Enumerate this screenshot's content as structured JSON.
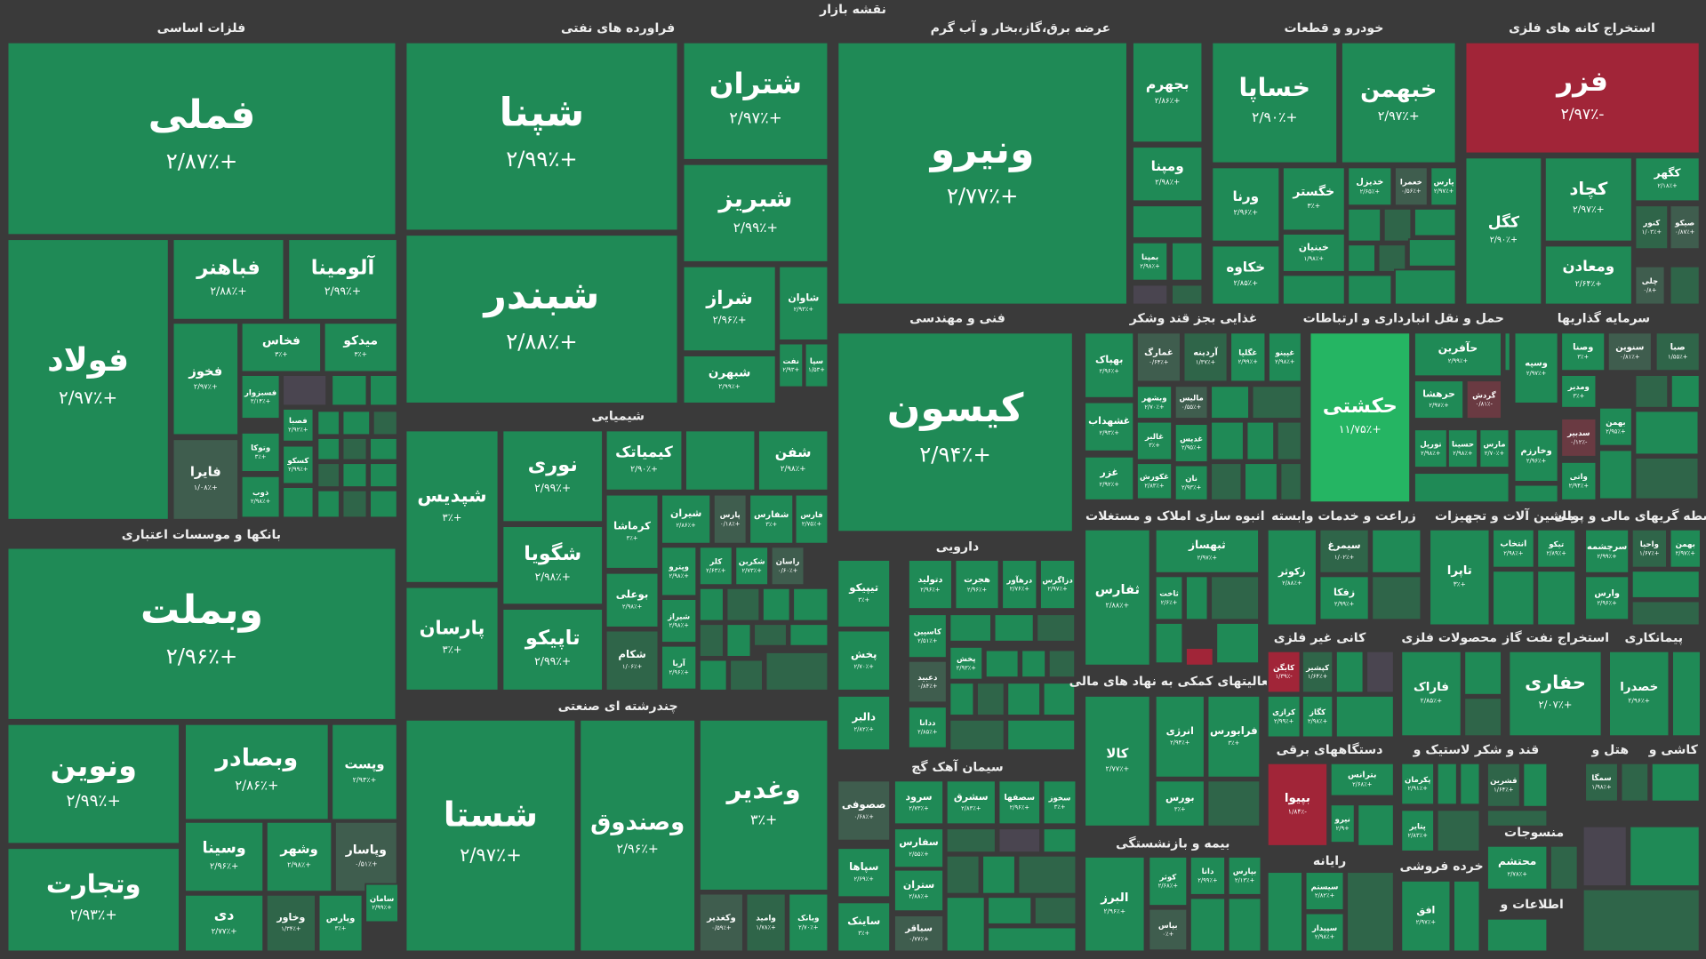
{
  "title": "نقشه بازار",
  "sectors": [
    {
      "title": "فلزات اساسی",
      "tiles": [
        {
          "name": "فملی",
          "change": "+۲/۸۷٪"
        },
        {
          "name": "فولاد",
          "change": "+۲/۹۷٪"
        },
        {
          "name": "فباهنر",
          "change": "+۲/۸۸٪"
        },
        {
          "name": "آلومینا",
          "change": "+۲/۹۹٪"
        },
        {
          "name": "فخوز",
          "change": "+۲/۹۷٪"
        },
        {
          "name": "فخاس",
          "change": "+۳٪"
        },
        {
          "name": "میدکو",
          "change": "+۳٪"
        },
        {
          "name": "فسبزوار",
          "change": "+۳/۱۴٪"
        },
        {
          "name": "فایرا",
          "change": "+۱/۰۸٪"
        },
        {
          "name": "وتوکا",
          "change": "+۳٪"
        },
        {
          "name": "ذوب",
          "change": "+۲/۹۸٪"
        },
        {
          "name": "فصبا",
          "change": "+۲/۹۲٪"
        },
        {
          "name": "کسکو",
          "change": "+۲/۹۹٪"
        }
      ]
    },
    {
      "title": "بانکها و موسسات اعتباری",
      "tiles": [
        {
          "name": "وبملت",
          "change": "+۲/۹۶٪"
        },
        {
          "name": "ونوین",
          "change": "+۲/۹۹٪"
        },
        {
          "name": "وبصادر",
          "change": "+۲/۸۶٪"
        },
        {
          "name": "وپست",
          "change": "+۲/۹۴٪"
        },
        {
          "name": "وتجارت",
          "change": "+۲/۹۳٪"
        },
        {
          "name": "وسینا",
          "change": "+۲/۹۶٪"
        },
        {
          "name": "وشهر",
          "change": "+۲/۹۸٪"
        },
        {
          "name": "وپاسار",
          "change": "+۰/۵۱٪"
        },
        {
          "name": "دی",
          "change": "+۲/۷۷٪"
        },
        {
          "name": "وخاور",
          "change": "+۱/۳۴٪"
        },
        {
          "name": "وپارس",
          "change": "+۳٪"
        },
        {
          "name": "سامان",
          "change": "+۲/۹۹٪"
        }
      ]
    },
    {
      "title": "فراورده های نفتی",
      "tiles": [
        {
          "name": "شپنا",
          "change": "+۲/۹۹٪"
        },
        {
          "name": "شتران",
          "change": "+۲/۹۷٪"
        },
        {
          "name": "شبریز",
          "change": "+۲/۹۹٪"
        },
        {
          "name": "شبندر",
          "change": "+۲/۸۸٪"
        },
        {
          "name": "شراز",
          "change": "+۲/۹۶٪"
        },
        {
          "name": "شاوان",
          "change": "+۲/۹۳٪"
        },
        {
          "name": "شبهرن",
          "change": "+۲/۹۹٪"
        },
        {
          "name": "نفت",
          "change": "+۲/۹۳"
        },
        {
          "name": "سپا",
          "change": "+۱/۵۳"
        }
      ]
    },
    {
      "title": "شیمیایی",
      "tiles": [
        {
          "name": "شپدیس",
          "change": "+۳٪"
        },
        {
          "name": "پارسان",
          "change": "+۳٪"
        },
        {
          "name": "نوری",
          "change": "+۲/۹۹٪"
        },
        {
          "name": "شگویا",
          "change": "+۲/۹۸٪"
        },
        {
          "name": "تاپیکو",
          "change": "+۲/۹۹٪"
        },
        {
          "name": "کیمیاتک",
          "change": "+۲/۹۰٪"
        },
        {
          "name": "شفن",
          "change": "+۲/۹۸٪"
        },
        {
          "name": "کرماشا",
          "change": "+۳٪"
        },
        {
          "name": "شیران",
          "change": "+۲/۸۶٪"
        },
        {
          "name": "پارس",
          "change": "+۰/۱۸٪"
        },
        {
          "name": "شفارس",
          "change": "+۳٪"
        },
        {
          "name": "فارس",
          "change": "+۲/۷۵٪"
        },
        {
          "name": "بوعلی",
          "change": "+۲/۹۸٪"
        },
        {
          "name": "شکام",
          "change": "+۱/۰۶٪"
        },
        {
          "name": "وپترو",
          "change": "+۲/۹۸٪"
        },
        {
          "name": "کلر",
          "change": "+۲/۶۳٪"
        },
        {
          "name": "شکربن",
          "change": "+۲/۷۳٪"
        },
        {
          "name": "راسان",
          "change": "+۰/۶۰٪"
        },
        {
          "name": "شیراز",
          "change": "+۲/۹۸٪"
        },
        {
          "name": "آریا",
          "change": "+۲/۹۶٪"
        }
      ]
    },
    {
      "title": "چندرشته ای صنعتی",
      "tiles": [
        {
          "name": "شستا",
          "change": "+۲/۹۷٪"
        },
        {
          "name": "وصندوق",
          "change": "+۲/۹۶٪"
        },
        {
          "name": "وغدیر",
          "change": "+۳٪"
        },
        {
          "name": "وکغدیر",
          "change": "+۰/۵۹٪"
        },
        {
          "name": "وامید",
          "change": "+۱/۷۸٪"
        },
        {
          "name": "وبانک",
          "change": "+۲/۷۰٪"
        }
      ]
    },
    {
      "title": "عرضه برق،گاز،بخار و آب گرم",
      "tiles": [
        {
          "name": "ونیرو",
          "change": "+۲/۷۷٪"
        },
        {
          "name": "بجهرم",
          "change": "+۲/۸۶٪"
        },
        {
          "name": "ومپنا",
          "change": "+۲/۹۸٪"
        },
        {
          "name": "بمپنا",
          "change": "+۲/۹۸٪"
        }
      ]
    },
    {
      "title": "خودرو و قطعات",
      "tiles": [
        {
          "name": "خساپا",
          "change": "+۲/۹۰٪"
        },
        {
          "name": "خبهمن",
          "change": "+۲/۹۷٪"
        },
        {
          "name": "ورنا",
          "change": "+۲/۹۶٪"
        },
        {
          "name": "خگستر",
          "change": "+۳٪"
        },
        {
          "name": "خدیزل",
          "change": "+۲/۶۵٪"
        },
        {
          "name": "خعمرا",
          "change": "+۰/۵۶٪"
        },
        {
          "name": "پارس",
          "change": "+۲/۹۷٪"
        },
        {
          "name": "خکاوه",
          "change": "+۲/۸۵٪"
        },
        {
          "name": "خبنیان",
          "change": "+۱/۹۸٪"
        }
      ]
    },
    {
      "title": "استخراج کانه های فلزی",
      "tiles": [
        {
          "name": "فزر",
          "change": "-۲/۹۷٪"
        },
        {
          "name": "کگل",
          "change": "+۲/۹۰٪"
        },
        {
          "name": "کچاد",
          "change": "+۲/۹۷٪"
        },
        {
          "name": "کگهر",
          "change": "+۲/۱۸٪"
        },
        {
          "name": "ومعادن",
          "change": "+۲/۶۴٪"
        },
        {
          "name": "کنور",
          "change": "+۱/۰۳٪"
        },
        {
          "name": "صیکو",
          "change": "+۰/۸۷٪"
        },
        {
          "name": "چلی",
          "change": "+۰/۸"
        }
      ]
    },
    {
      "title": "فنی و مهندسی",
      "tiles": [
        {
          "name": "کیسون",
          "change": "+۲/۹۴٪"
        }
      ]
    },
    {
      "title": "دارویی",
      "tiles": [
        {
          "name": "تیپیکو",
          "change": "+۳٪"
        },
        {
          "name": "دتولید",
          "change": "+۲/۹۶٪"
        },
        {
          "name": "هجرت",
          "change": "+۲/۹۶٪"
        },
        {
          "name": "درهآور",
          "change": "+۲/۷۶٪"
        },
        {
          "name": "دزاگرس",
          "change": "+۲/۹۷٪"
        },
        {
          "name": "پخش",
          "change": "+۲/۷۰٪"
        },
        {
          "name": "کاسپین",
          "change": "+۲/۵۱٪"
        },
        {
          "name": "دعبید",
          "change": "+۰/۸۴٪"
        },
        {
          "name": "دالبر",
          "change": "+۲/۸۲٪"
        },
        {
          "name": "ددانا",
          "change": "+۲/۸۵٪"
        },
        {
          "name": "پخش",
          "change": "+۲/۹۳٪"
        }
      ]
    },
    {
      "title": "سیمان آهک گچ",
      "tiles": [
        {
          "name": "صصوفی",
          "change": "+۰/۶۸٪"
        },
        {
          "name": "سرود",
          "change": "+۲/۷۳٪"
        },
        {
          "name": "سشرق",
          "change": "+۲/۸۳٪"
        },
        {
          "name": "سصفها",
          "change": "+۲/۹۶٪"
        },
        {
          "name": "سخوز",
          "change": "+۳٪"
        },
        {
          "name": "سفارس",
          "change": "+۲/۵۵٪"
        },
        {
          "name": "سپاها",
          "change": "+۲/۶۹٪"
        },
        {
          "name": "ستران",
          "change": "+۲/۸۸٪"
        },
        {
          "name": "ساینک",
          "change": "+۳٪"
        },
        {
          "name": "سباقر",
          "change": "+۰/۷۷٪"
        }
      ]
    },
    {
      "title": "غذایی بجز قند وشکر",
      "tiles": [
        {
          "name": "بهپاک",
          "change": "+۲/۹۶٪"
        },
        {
          "name": "غمارگ",
          "change": "+۰/۶۴٪"
        },
        {
          "name": "آردینه",
          "change": "+۱/۳۷٪"
        },
        {
          "name": "غگلپا",
          "change": "+۲/۹۹٪"
        },
        {
          "name": "غپینو",
          "change": "+۲/۹۸٪"
        },
        {
          "name": "غشهداب",
          "change": "+۲/۹۳٪"
        },
        {
          "name": "وبشهر",
          "change": "+۲/۷۰٪"
        },
        {
          "name": "غالبر",
          "change": "+۳٪"
        },
        {
          "name": "غزر",
          "change": "+۲/۹۲٪"
        },
        {
          "name": "غکورش",
          "change": "+۲/۸۳٪"
        },
        {
          "name": "مالیس",
          "change": "+۰/۵۵٪"
        },
        {
          "name": "غدیس",
          "change": "+۲/۹۵٪"
        },
        {
          "name": "نان",
          "change": "+۲/۹۳٪"
        }
      ]
    },
    {
      "title": "انبوه سازی املاک و مستغلات",
      "tiles": [
        {
          "name": "ثفارس",
          "change": "+۲/۸۸٪"
        },
        {
          "name": "ثبهساز",
          "change": "+۲/۹۷٪"
        },
        {
          "name": "ثاخت",
          "change": "+۲/۶٪"
        }
      ]
    },
    {
      "title": "فعالیتهای کمکی به نهاد های مالی",
      "tiles": [
        {
          "name": "کالا",
          "change": "+۲/۷۷٪"
        },
        {
          "name": "انرژی",
          "change": "+۲/۹۴٪"
        },
        {
          "name": "فرابورس",
          "change": "+۳٪"
        },
        {
          "name": "بورس",
          "change": "+۳٪"
        }
      ]
    },
    {
      "title": "بیمه و بازنشستگی",
      "tiles": [
        {
          "name": "البرز",
          "change": "+۲/۹۶٪"
        },
        {
          "name": "کوثر",
          "change": "+۲/۶۸٪"
        },
        {
          "name": "دانا",
          "change": "+۲/۹۹٪"
        },
        {
          "name": "بپاس",
          "change": "+۰٪"
        },
        {
          "name": "بپارس",
          "change": "+۲/۱۳٪"
        }
      ]
    },
    {
      "title": "حمل و نقل انبارداری و ارتباطات",
      "tiles": [
        {
          "name": "حکشتی",
          "change": "+۱۱/۷۵٪"
        },
        {
          "name": "حآفرین",
          "change": "+۲/۹۹٪"
        },
        {
          "name": "حرهشا",
          "change": "+۲/۹۷٪"
        },
        {
          "name": "گردش",
          "change": "-۰/۸۱٪"
        },
        {
          "name": "تورپل",
          "change": "+۲/۹۸٪"
        },
        {
          "name": "حسینا",
          "change": "+۲/۹۸٪"
        },
        {
          "name": "مارس",
          "change": "+۲/۷۰٪"
        }
      ]
    },
    {
      "title": "سرمایه گذاریها",
      "tiles": [
        {
          "name": "وسپه",
          "change": "+۲/۹۷٪"
        },
        {
          "name": "وصنا",
          "change": "+۳٪"
        },
        {
          "name": "سنوین",
          "change": "+۰/۸۱٪"
        },
        {
          "name": "صبا",
          "change": "+۱/۵۵٪"
        },
        {
          "name": "وخارزم",
          "change": "+۲/۹۶٪"
        },
        {
          "name": "ومدیر",
          "change": "+۳٪"
        },
        {
          "name": "بهمن",
          "change": "+۲/۹۵٪"
        },
        {
          "name": "سدبیر",
          "change": "-۰/۱۲٪"
        },
        {
          "name": "واتی",
          "change": "+۲/۹۴٪"
        }
      ]
    },
    {
      "title": "زراعت و خدمات وابسته",
      "tiles": [
        {
          "name": "زکوثر",
          "change": "+۲/۸۸٪"
        },
        {
          "name": "سیمرغ",
          "change": "+۱/۰۲٪"
        },
        {
          "name": "زفکا",
          "change": "+۲/۹۹٪"
        }
      ]
    },
    {
      "title": "ماشین آلات و تجهیزات",
      "tiles": [
        {
          "name": "تاپرا",
          "change": "+۳٪"
        },
        {
          "name": "انتخاب",
          "change": "+۲/۹۸٪"
        },
        {
          "name": "تیکو",
          "change": "+۲/۸۹٪"
        }
      ]
    },
    {
      "title": "واسطه گریهای مالی و پولی",
      "tiles": [
        {
          "name": "سرچشمه",
          "change": "+۲/۹۹٪"
        },
        {
          "name": "واحیا",
          "change": "+۱/۶۷٪"
        },
        {
          "name": "بهمن",
          "change": "+۲/۹۷٪"
        },
        {
          "name": "وارس",
          "change": "+۲/۹۶٪"
        }
      ]
    },
    {
      "title": "کانی غیر فلزی",
      "tiles": [
        {
          "name": "کابگن",
          "change": "-۱/۳۹٪"
        },
        {
          "name": "کپشیر",
          "change": "+۱/۶۴٪"
        },
        {
          "name": "کرازی",
          "change": "+۲/۹۹٪"
        },
        {
          "name": "کگاز",
          "change": "+۲/۹۸٪"
        }
      ]
    },
    {
      "title": "محصولات فلزی",
      "tiles": [
        {
          "name": "فاراک",
          "change": "+۲/۸۵٪"
        }
      ]
    },
    {
      "title": "استخراج نفت گاز",
      "tiles": [
        {
          "name": "حفاری",
          "change": "+۲/۰۷٪"
        }
      ]
    },
    {
      "title": "پیمانکاری",
      "tiles": [
        {
          "name": "خصدرا",
          "change": "+۲/۹۶٪"
        }
      ]
    },
    {
      "title": "دستگاههای برقی",
      "tiles": [
        {
          "name": "بپیوا",
          "change": "-۱/۸۴٪"
        },
        {
          "name": "بترانس",
          "change": "+۲/۶۸٪"
        },
        {
          "name": "نیرو",
          "change": "+۲/۹"
        }
      ]
    },
    {
      "title": "لاستیک و",
      "tiles": [
        {
          "name": "پکرمان",
          "change": "+۲/۹۱٪"
        },
        {
          "name": "پتایر",
          "change": "+۲/۸۳٪"
        }
      ]
    },
    {
      "title": "قند و شکر",
      "tiles": [
        {
          "name": "قشرین",
          "change": "+۱/۶۴٪"
        }
      ]
    },
    {
      "title": "هتل و",
      "tiles": [
        {
          "name": "سمگا",
          "change": "+۱/۹۸٪"
        }
      ]
    },
    {
      "title": "کاشی و"
    },
    {
      "title": "رایانه",
      "tiles": [
        {
          "name": "سیستم",
          "change": "+۲/۸۲٪"
        },
        {
          "name": "سپیدار",
          "change": "+۲/۹۸٪"
        }
      ]
    },
    {
      "title": "خرده فروشی",
      "tiles": [
        {
          "name": "افق",
          "change": "+۲/۹۷٪"
        }
      ]
    },
    {
      "title": "منسوجات",
      "tiles": [
        {
          "name": "محتشم",
          "change": "+۲/۷۸٪"
        }
      ]
    },
    {
      "title": "اطلاعات و"
    }
  ]
}
